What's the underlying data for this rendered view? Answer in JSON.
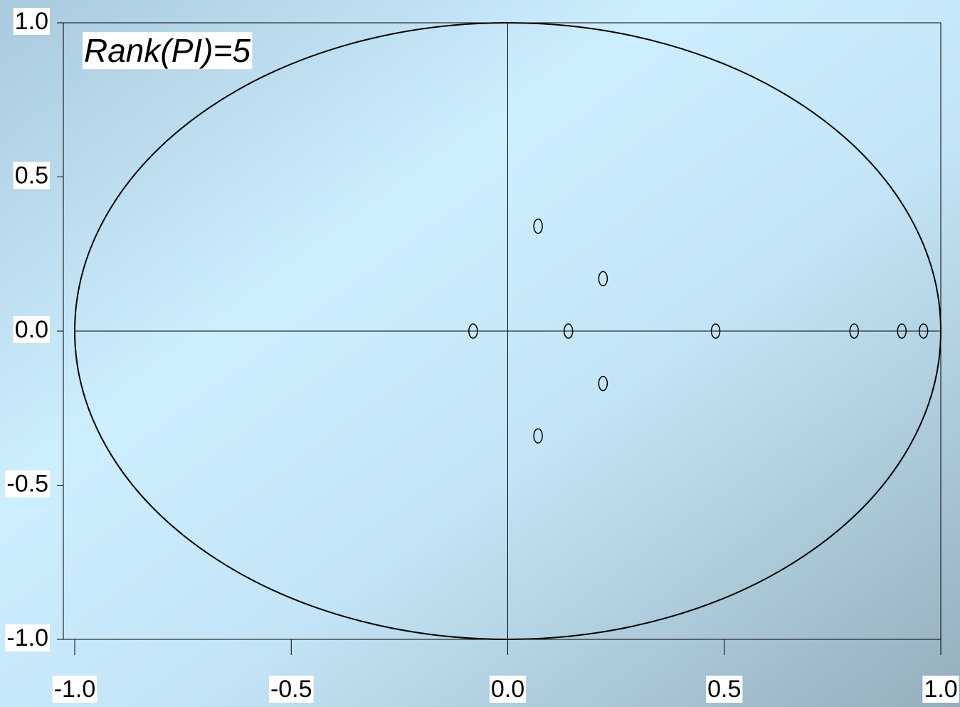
{
  "chart_data": {
    "type": "scatter",
    "annotation": "Rank(PI)=5",
    "x": [
      -0.08,
      0.07,
      0.07,
      0.22,
      0.22,
      0.14,
      0.48,
      0.8,
      0.91,
      0.96
    ],
    "values": [
      0,
      0.34,
      -0.34,
      0.17,
      -0.17,
      0,
      0,
      0,
      0,
      0
    ],
    "color": "#000000",
    "xlim": [
      -1,
      1
    ],
    "xticks": [
      {
        "value": -1,
        "label": "-1.0"
      },
      -0.5,
      {
        "value": 0,
        "label": "0.0"
      },
      0.5,
      {
        "value": 1,
        "label": "1.0"
      }
    ],
    "ylim": [
      -1,
      1
    ],
    "yticks": [
      {
        "value": -1,
        "label": "-1.0"
      },
      -0.5,
      {
        "value": 0,
        "label": "0.0"
      },
      0.5,
      {
        "value": 1,
        "label": "1.0"
      }
    ]
  }
}
